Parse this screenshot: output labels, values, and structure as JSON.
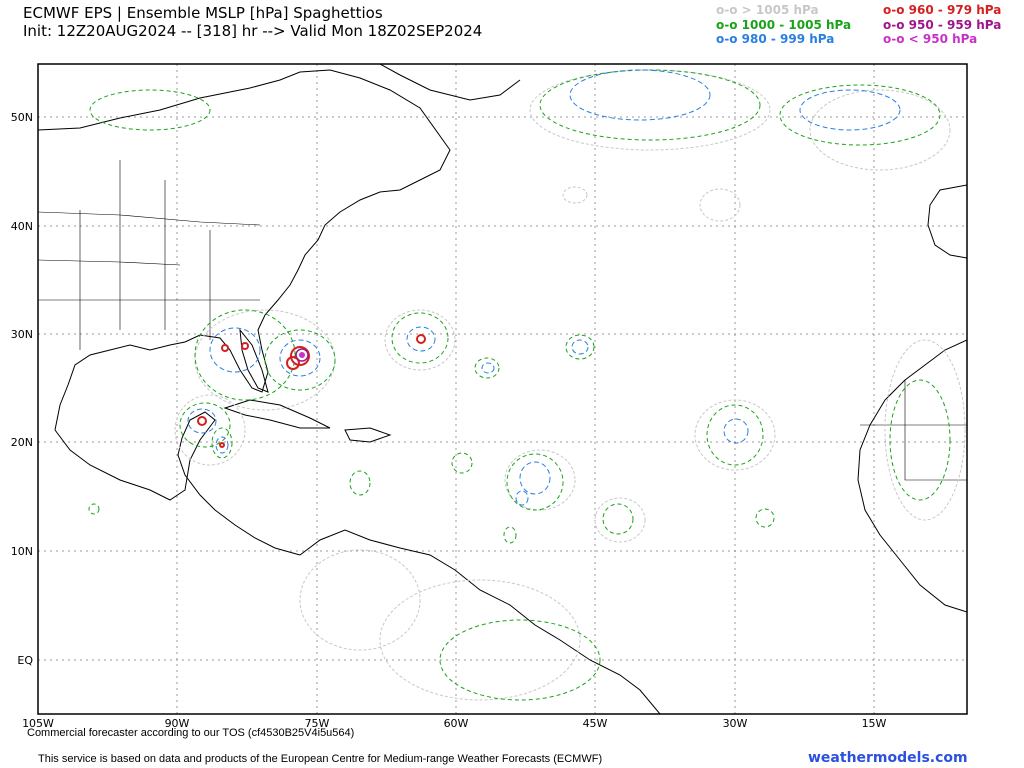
{
  "header": {
    "title": "ECMWF EPS | Ensemble MSLP [hPa] Spaghettios",
    "subtitle": "Init: 12Z20AUG2024 -- [318] hr --> Valid Mon 18Z02SEP2024"
  },
  "legend": {
    "left": [
      {
        "marker": "o-o",
        "label": "> 1005 hPa",
        "color": "#c8c8c8"
      },
      {
        "marker": "o-o",
        "label": "1000 - 1005 hPa",
        "color": "#1aa31a"
      },
      {
        "marker": "o-o",
        "label": "980 - 999 hPa",
        "color": "#2a7fe0"
      }
    ],
    "right": [
      {
        "marker": "o-o",
        "label": "960 - 979 hPa",
        "color": "#d42020"
      },
      {
        "marker": "o-o",
        "label": "950 - 959 hPa",
        "color": "#a0148c"
      },
      {
        "marker": "o-o",
        "label": "< 950 hPa",
        "color": "#c830c8"
      }
    ]
  },
  "map": {
    "lat_labels": [
      "50N",
      "40N",
      "30N",
      "20N",
      "10N",
      "EQ"
    ],
    "lon_labels": [
      "105W",
      "90W",
      "75W",
      "60W",
      "45W",
      "30W",
      "15W"
    ],
    "colors": {
      "gt1005": "#c8c8c8",
      "g1000_1005": "#1aa31a",
      "g980_999": "#2a7fe0",
      "g960_979": "#d42020",
      "g950_959": "#a0148c",
      "lt950": "#c830c8",
      "coast": "#000000"
    }
  },
  "footer": {
    "tos": "Commercial forecaster according to our TOS (cf4530B25V4i5u564)",
    "credit": "This service is based on data and products of the European Centre for Medium-range Weather Forecasts (ECMWF)",
    "site": "weathermodels.com"
  }
}
